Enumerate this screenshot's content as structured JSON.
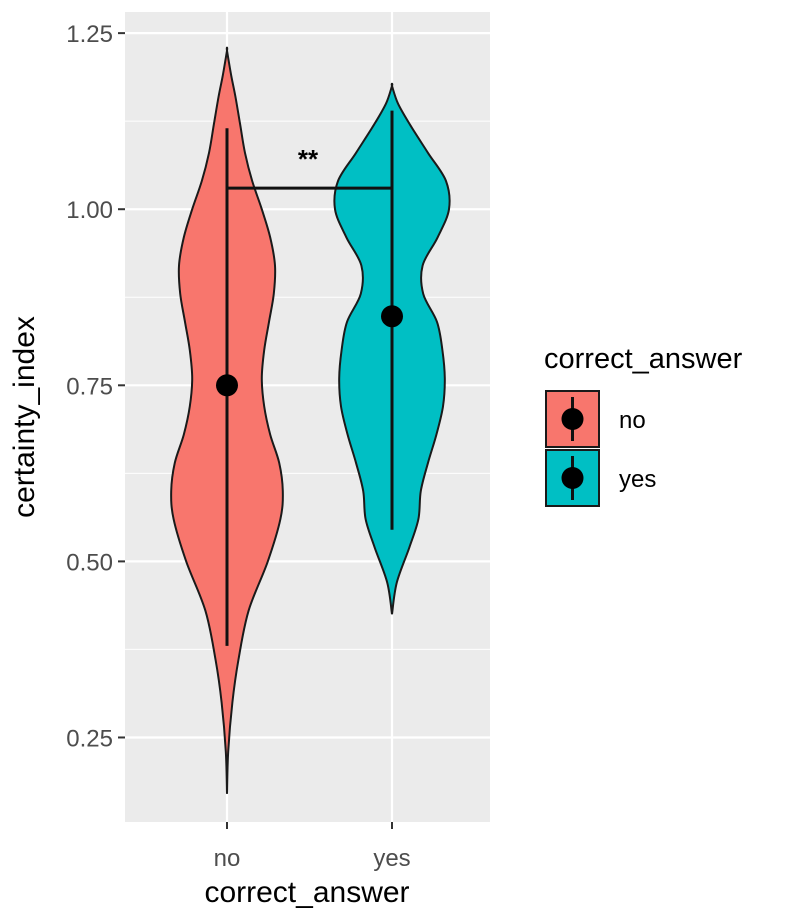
{
  "chart_data": {
    "type": "violin",
    "xlabel": "correct_answer",
    "ylabel": "certainty_index",
    "categories": [
      "no",
      "yes"
    ],
    "ylim": [
      0.13,
      1.28
    ],
    "yticks": [
      0.25,
      0.5,
      0.75,
      1.0,
      1.25
    ],
    "ytick_labels": [
      "0.25",
      "0.50",
      "0.75",
      "1.00",
      "1.25"
    ],
    "grid": true,
    "legend": {
      "title": "correct_answer",
      "position": "right",
      "entries": [
        "no",
        "yes"
      ]
    },
    "colors": {
      "no": "#F8766D",
      "yes": "#00BFC4"
    },
    "series": [
      {
        "category": "no",
        "mean": 0.75,
        "interval": [
          0.38,
          1.115
        ],
        "density_y": [
          0.17,
          0.23,
          0.3,
          0.36,
          0.43,
          0.5,
          0.56,
          0.6,
          0.64,
          0.68,
          0.72,
          0.76,
          0.8,
          0.84,
          0.88,
          0.92,
          0.96,
          1.0,
          1.04,
          1.08,
          1.12,
          1.16,
          1.19,
          1.225
        ],
        "density_w": [
          0.0,
          0.02,
          0.09,
          0.19,
          0.36,
          0.68,
          0.89,
          0.93,
          0.87,
          0.72,
          0.62,
          0.58,
          0.62,
          0.7,
          0.78,
          0.8,
          0.72,
          0.58,
          0.42,
          0.3,
          0.22,
          0.14,
          0.07,
          0.0
        ]
      },
      {
        "category": "yes",
        "mean": 0.848,
        "interval": [
          0.545,
          1.14
        ],
        "density_y": [
          0.425,
          0.47,
          0.52,
          0.56,
          0.6,
          0.64,
          0.68,
          0.72,
          0.76,
          0.8,
          0.84,
          0.88,
          0.92,
          0.96,
          1.0,
          1.04,
          1.08,
          1.12,
          1.15,
          1.175
        ],
        "density_w": [
          0.0,
          0.08,
          0.29,
          0.44,
          0.48,
          0.6,
          0.74,
          0.85,
          0.88,
          0.84,
          0.75,
          0.52,
          0.51,
          0.76,
          0.95,
          0.9,
          0.6,
          0.3,
          0.1,
          0.0
        ]
      }
    ],
    "annotations": [
      {
        "text": "**",
        "between": [
          "no",
          "yes"
        ],
        "y": 1.03
      }
    ]
  }
}
